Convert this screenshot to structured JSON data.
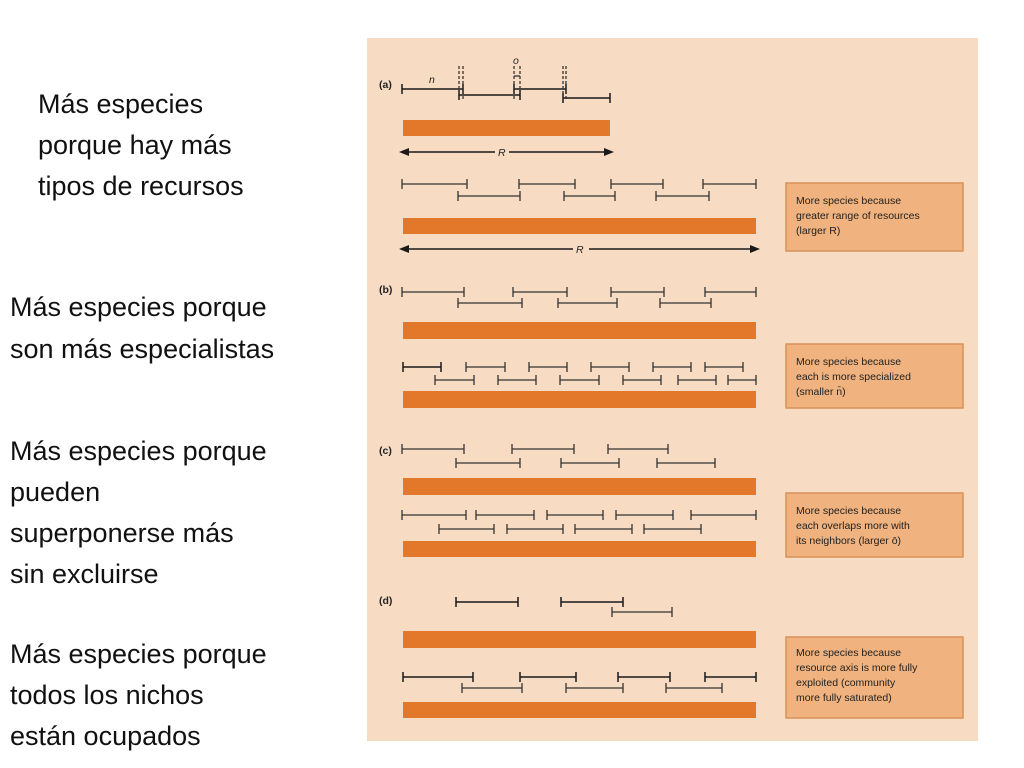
{
  "captions": {
    "a": [
      "Más especies",
      "porque hay más",
      "tipos de recursos"
    ],
    "b": [
      "Más especies porque",
      "son más especialistas"
    ],
    "c": [
      "Más especies porque",
      "pueden",
      "superponerse más",
      "sin excluirse"
    ],
    "d": [
      "Más especies porque",
      "todos los nichos",
      "están ocupados"
    ]
  },
  "figure": {
    "panel_labels": [
      "(a)",
      "(b)",
      "(c)",
      "(d)"
    ],
    "symbols": {
      "n": "n",
      "o": "o",
      "R": "R"
    },
    "boxes": {
      "a": [
        "More species because",
        "greater range of resources",
        "(larger R)"
      ],
      "b": [
        "More species because",
        "each is more specialized",
        "(smaller n̄)"
      ],
      "c": [
        "More species because",
        "each overlaps more with",
        "its neighbors (larger ō)"
      ],
      "d": [
        "More species because",
        "resource axis is more fully",
        "exploited (community",
        "more fully saturated)"
      ]
    },
    "colors": {
      "background": "#f7dcc3",
      "resource_bar": "#e4782a",
      "text_box": "#f0b27e"
    }
  }
}
